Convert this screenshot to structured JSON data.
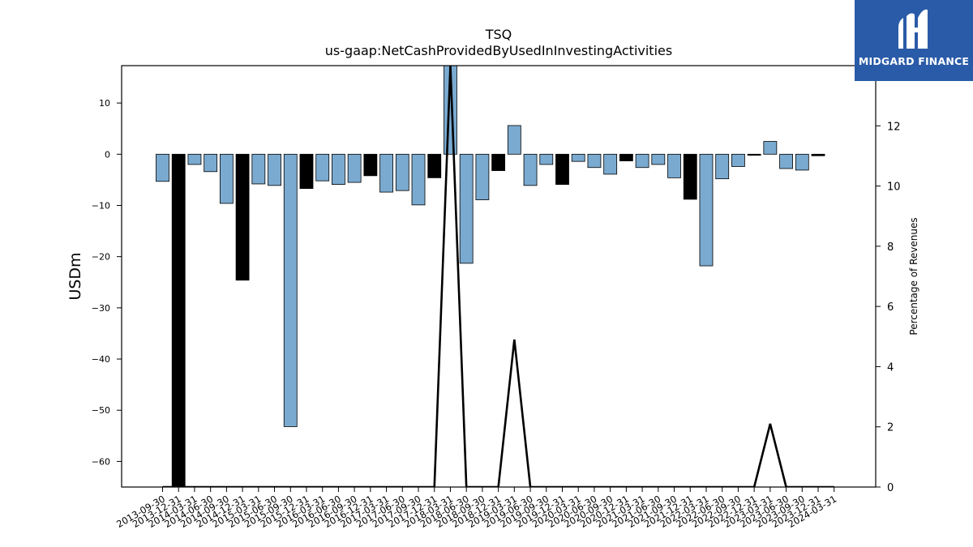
{
  "chart_data": {
    "type": "bar",
    "title": "TSQ",
    "subtitle": "us-gaap:NetCashProvidedByUsedInInvestingActivities",
    "ylabel": "USDm",
    "y2label": "Percentage of Revenues",
    "ylim": [
      -65,
      17.3
    ],
    "y2lim": [
      0,
      14
    ],
    "yticks": [
      10,
      0,
      -10,
      -20,
      -30,
      -40,
      -50,
      -60
    ],
    "y2ticks": [
      0,
      2,
      4,
      6,
      8,
      10,
      12
    ],
    "categories": [
      "2013-09-30",
      "2013-12-31",
      "2014-03-31",
      "2014-06-30",
      "2014-09-30",
      "2014-12-31",
      "2015-03-31",
      "2015-06-30",
      "2015-09-30",
      "2015-12-31",
      "2016-03-31",
      "2016-06-30",
      "2016-09-30",
      "2016-12-31",
      "2017-03-31",
      "2017-06-30",
      "2017-09-30",
      "2017-12-31",
      "2018-03-31",
      "2018-06-30",
      "2018-09-30",
      "2018-12-31",
      "2019-03-31",
      "2019-06-30",
      "2019-09-30",
      "2019-12-31",
      "2020-03-31",
      "2020-06-30",
      "2020-09-30",
      "2020-12-31",
      "2021-03-31",
      "2021-06-30",
      "2021-09-30",
      "2021-12-31",
      "2022-03-31",
      "2022-06-30",
      "2022-09-30",
      "2022-12-31",
      "2023-03-31",
      "2023-06-30",
      "2023-09-30",
      "2023-12-31",
      "2024-03-31"
    ],
    "tick_labels": [
      "2013-09-30",
      "2013-12-31",
      "2014-03-31",
      "2014-06-30",
      "2014-09-30",
      "2014-12-31",
      "2015-03-31",
      "2015-06-30",
      "2015-09-30",
      "2015-12-31",
      "2016-03-31",
      "2016-06-30",
      "2016-09-30",
      "2016-12-31",
      "2017-03-31",
      "2017-06-30",
      "2017-09-30",
      "2017-12-31",
      "2018-03-31",
      "2018-06-30",
      "2018-09-30",
      "2018-12-31",
      "2019-03-31",
      "2019-06-30",
      "2019-09-30",
      "2019-12-31",
      "2020-03-31",
      "2020-06-30",
      "2020-09-30",
      "2020-12-31",
      "2021-03-31",
      "2021-06-30",
      "2021-09-30",
      "2021-12-31",
      "2022-03-31",
      "2022-06-30",
      "2022-09-30",
      "2022-12-31",
      "2023-03-31",
      "2023-06-30",
      "2023-09-30",
      "2023-12-31",
      "2024-03-31"
    ],
    "values": [
      -5.3,
      -65,
      -2.0,
      -3.4,
      -9.6,
      -24.6,
      -5.8,
      -6.1,
      -53.2,
      -6.7,
      -5.2,
      -5.9,
      -5.5,
      -4.2,
      -7.4,
      -7.1,
      -9.9,
      -4.6,
      17.3,
      -21.3,
      -8.9,
      -3.2,
      5.6,
      -6.1,
      -2.0,
      -5.9,
      -1.4,
      -2.6,
      -3.9,
      -1.3,
      -2.6,
      -2.0,
      -4.6,
      -8.8,
      -21.8,
      -4.8,
      -2.4,
      -0.2,
      2.5,
      -2.8,
      -3.1,
      -0.3,
      null
    ],
    "bar_colors": [
      "#7aaad0",
      "#000000",
      "#7aaad0",
      "#7aaad0",
      "#7aaad0",
      "#000000",
      "#7aaad0",
      "#7aaad0",
      "#7aaad0",
      "#000000",
      "#7aaad0",
      "#7aaad0",
      "#7aaad0",
      "#000000",
      "#7aaad0",
      "#7aaad0",
      "#7aaad0",
      "#000000",
      "#7aaad0",
      "#7aaad0",
      "#7aaad0",
      "#000000",
      "#7aaad0",
      "#7aaad0",
      "#7aaad0",
      "#000000",
      "#7aaad0",
      "#7aaad0",
      "#7aaad0",
      "#000000",
      "#7aaad0",
      "#7aaad0",
      "#7aaad0",
      "#000000",
      "#7aaad0",
      "#7aaad0",
      "#7aaad0",
      "#000000",
      "#7aaad0",
      "#7aaad0",
      "#7aaad0",
      "#000000",
      "#7aaad0"
    ],
    "line_series": {
      "axis": "right",
      "color": "#000000",
      "values": [
        0,
        0,
        0,
        0,
        0,
        0,
        0,
        0,
        0,
        0,
        0,
        0,
        0,
        0,
        0,
        0,
        0,
        0,
        14,
        0,
        0,
        0,
        4.9,
        0,
        0,
        0,
        0,
        0,
        0,
        0,
        0,
        0,
        0,
        0,
        0,
        0,
        0,
        0,
        2.1,
        0,
        0,
        0,
        0
      ]
    },
    "grid": false
  },
  "logo": {
    "text": "MIDGARD FINANCE",
    "background": "#2a5ba8"
  }
}
